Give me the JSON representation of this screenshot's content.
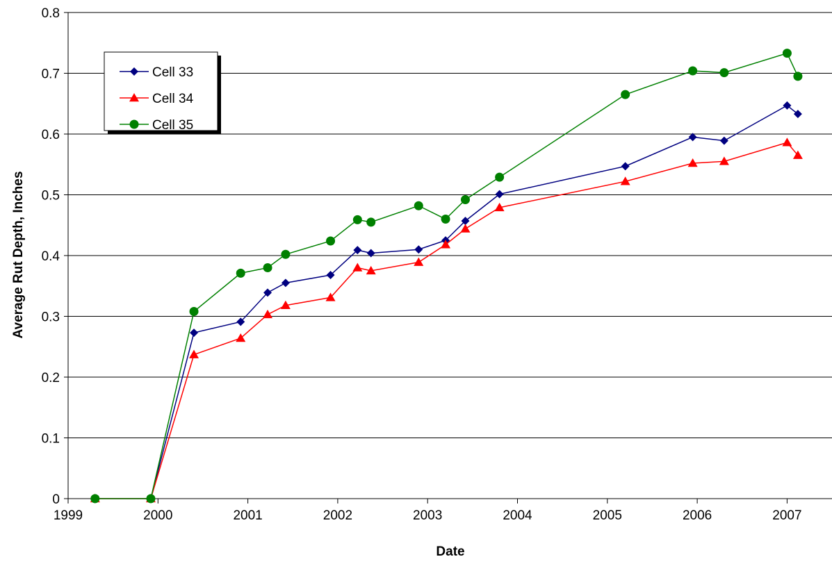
{
  "chart_data": {
    "type": "line",
    "title": "",
    "xlabel": "Date",
    "ylabel": "Average Rut Depth, Inches",
    "x_ticks": [
      "1999",
      "2000",
      "2001",
      "2002",
      "2003",
      "2004",
      "2005",
      "2006",
      "2007"
    ],
    "y_ticks": [
      "0",
      "0.1",
      "0.2",
      "0.3",
      "0.4",
      "0.5",
      "0.6",
      "0.7",
      "0.8"
    ],
    "xlim": [
      1999,
      2007.3
    ],
    "ylim": [
      0,
      0.8
    ],
    "grid": "horizontal",
    "legend_position": "top-left",
    "x": [
      1999.3,
      1999.92,
      2000.4,
      2000.92,
      2001.22,
      2001.42,
      2001.92,
      2002.22,
      2002.37,
      2002.9,
      2003.2,
      2003.42,
      2003.8,
      2005.2,
      2005.95,
      2006.3,
      2007.0,
      2007.12
    ],
    "series": [
      {
        "name": "Cell 33",
        "color": "#000080",
        "marker": "diamond",
        "values": [
          0.0,
          0.0,
          0.273,
          0.291,
          0.339,
          0.355,
          0.368,
          0.409,
          0.404,
          0.41,
          0.425,
          0.457,
          0.501,
          0.547,
          0.595,
          0.589,
          0.647,
          0.633
        ]
      },
      {
        "name": "Cell 34",
        "color": "#ff0000",
        "marker": "triangle",
        "values": [
          0.0,
          0.0,
          0.237,
          0.264,
          0.303,
          0.318,
          0.331,
          0.38,
          0.375,
          0.389,
          0.418,
          0.444,
          0.479,
          0.522,
          0.552,
          0.555,
          0.586,
          0.565
        ]
      },
      {
        "name": "Cell 35",
        "color": "#008000",
        "marker": "circle",
        "values": [
          0.0,
          0.0,
          0.308,
          0.371,
          0.38,
          0.402,
          0.424,
          0.459,
          0.455,
          0.482,
          0.46,
          0.492,
          0.529,
          0.665,
          0.704,
          0.701,
          0.733,
          0.695
        ]
      }
    ]
  }
}
